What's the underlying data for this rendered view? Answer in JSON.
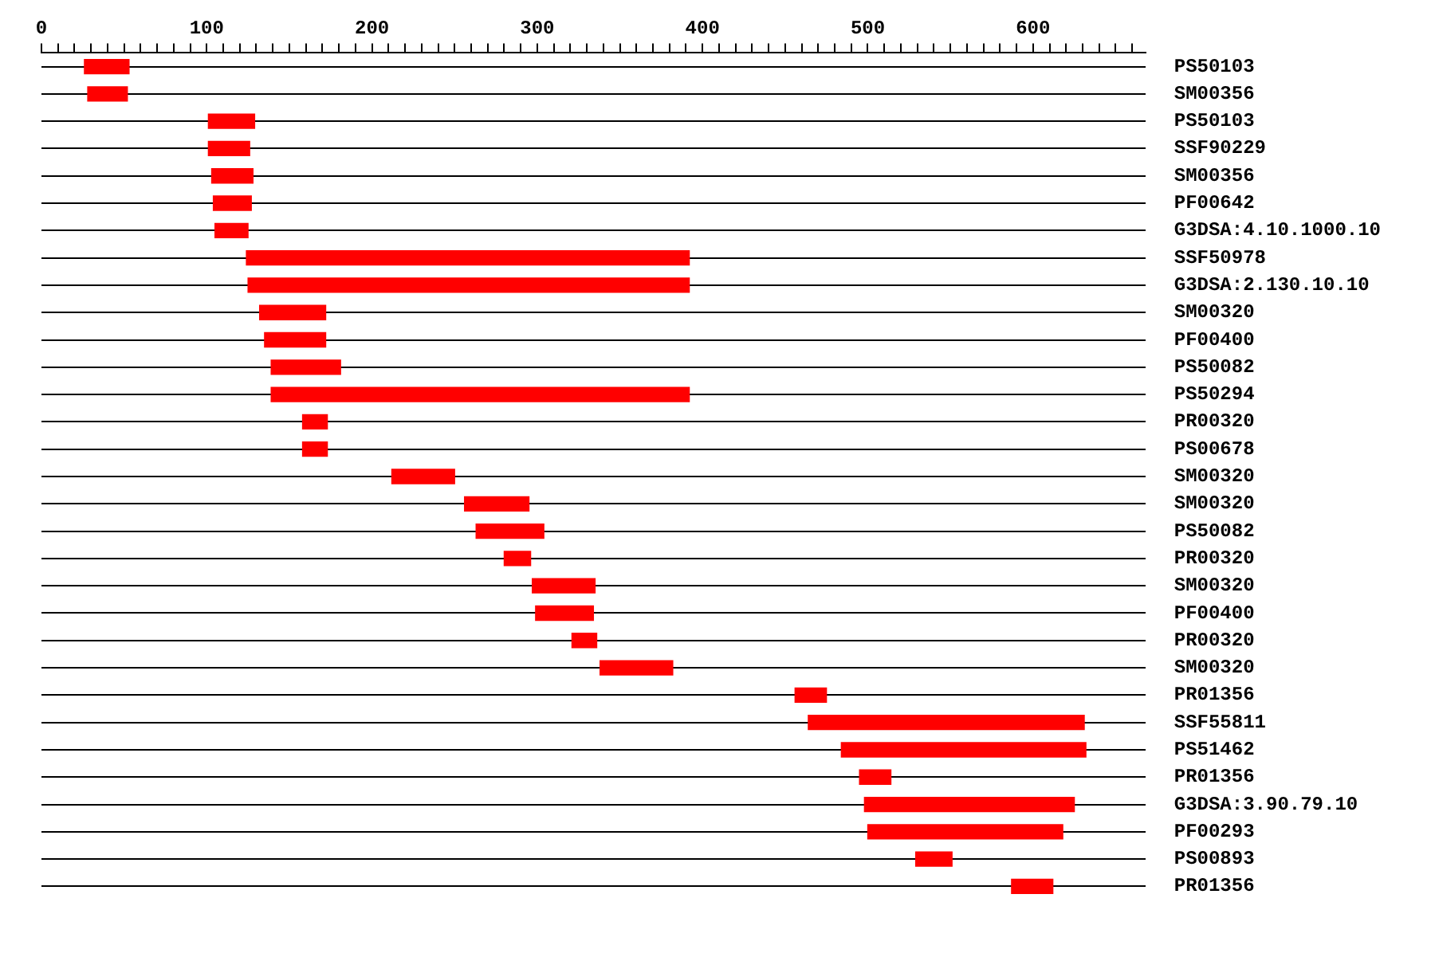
{
  "chart_data": {
    "type": "bar",
    "orientation": "horizontal",
    "color": "#ff0000",
    "grid": "y",
    "legend": false,
    "categories": [
      "PS50103",
      "SM00356",
      "PS50103",
      "SSF90229",
      "SM00356",
      "PF00642",
      "G3DSA:4.10.1000.10",
      "SSF50978",
      "G3DSA:2.130.10.10",
      "SM00320",
      "PF00400",
      "PS50082",
      "PS50294",
      "PR00320",
      "PS00678",
      "SM00320",
      "SM00320",
      "PS50082",
      "PR00320",
      "SM00320",
      "PF00400",
      "PR00320",
      "SM00320",
      "PR01356",
      "SSF55811",
      "PS51462",
      "PR01356",
      "G3DSA:3.90.79.10",
      "PF00293",
      "PS00893",
      "PR01356"
    ],
    "base": [
      26,
      28,
      101,
      101,
      103,
      104,
      105,
      124,
      125,
      132,
      135,
      139,
      139,
      158,
      158,
      212,
      256,
      263,
      280,
      297,
      299,
      321,
      338,
      456,
      464,
      484,
      495,
      498,
      500,
      529,
      587
    ],
    "values": [
      27,
      24,
      28,
      25,
      25,
      23,
      20,
      268,
      267,
      40,
      37,
      42,
      253,
      15,
      15,
      38,
      39,
      41,
      16,
      38,
      35,
      15,
      44,
      19,
      167,
      148,
      19,
      127,
      118,
      22,
      25
    ],
    "xlim": [
      0,
      668
    ],
    "xticks": [
      0,
      {
        "value": 10,
        "label": null
      },
      {
        "value": 20,
        "label": null
      },
      {
        "value": 30,
        "label": null
      },
      {
        "value": 40,
        "label": null
      },
      {
        "value": 50,
        "label": null
      },
      {
        "value": 60,
        "label": null
      },
      {
        "value": 70,
        "label": null
      },
      {
        "value": 80,
        "label": null
      },
      {
        "value": 90,
        "label": null
      },
      100,
      {
        "value": 110,
        "label": null
      },
      {
        "value": 120,
        "label": null
      },
      {
        "value": 130,
        "label": null
      },
      {
        "value": 140,
        "label": null
      },
      {
        "value": 150,
        "label": null
      },
      {
        "value": 160,
        "label": null
      },
      {
        "value": 170,
        "label": null
      },
      {
        "value": 180,
        "label": null
      },
      {
        "value": 190,
        "label": null
      },
      200,
      {
        "value": 210,
        "label": null
      },
      {
        "value": 220,
        "label": null
      },
      {
        "value": 230,
        "label": null
      },
      {
        "value": 240,
        "label": null
      },
      {
        "value": 250,
        "label": null
      },
      {
        "value": 260,
        "label": null
      },
      {
        "value": 270,
        "label": null
      },
      {
        "value": 280,
        "label": null
      },
      {
        "value": 290,
        "label": null
      },
      300,
      {
        "value": 310,
        "label": null
      },
      {
        "value": 320,
        "label": null
      },
      {
        "value": 330,
        "label": null
      },
      {
        "value": 340,
        "label": null
      },
      {
        "value": 350,
        "label": null
      },
      {
        "value": 360,
        "label": null
      },
      {
        "value": 370,
        "label": null
      },
      {
        "value": 380,
        "label": null
      },
      {
        "value": 390,
        "label": null
      },
      400,
      {
        "value": 410,
        "label": null
      },
      {
        "value": 420,
        "label": null
      },
      {
        "value": 430,
        "label": null
      },
      {
        "value": 440,
        "label": null
      },
      {
        "value": 450,
        "label": null
      },
      {
        "value": 460,
        "label": null
      },
      {
        "value": 470,
        "label": null
      },
      {
        "value": 480,
        "label": null
      },
      {
        "value": 490,
        "label": null
      },
      500,
      {
        "value": 510,
        "label": null
      },
      {
        "value": 520,
        "label": null
      },
      {
        "value": 530,
        "label": null
      },
      {
        "value": 540,
        "label": null
      },
      {
        "value": 550,
        "label": null
      },
      {
        "value": 560,
        "label": null
      },
      {
        "value": 570,
        "label": null
      },
      {
        "value": 580,
        "label": null
      },
      {
        "value": 590,
        "label": null
      },
      600,
      {
        "value": 610,
        "label": null
      },
      {
        "value": 620,
        "label": null
      },
      {
        "value": 630,
        "label": null
      },
      {
        "value": 640,
        "label": null
      },
      {
        "value": 650,
        "label": null
      },
      {
        "value": 660,
        "label": null
      }
    ]
  }
}
